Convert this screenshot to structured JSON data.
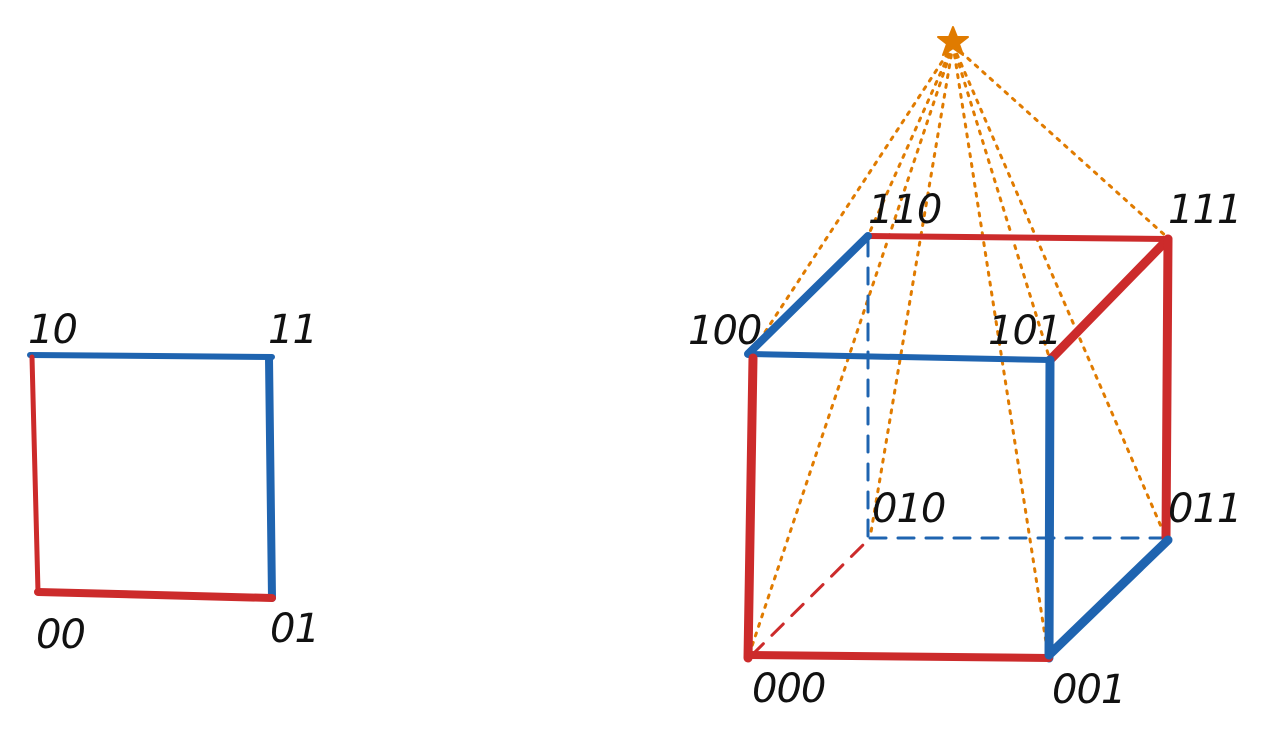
{
  "square": {
    "labels": {
      "v00": "00",
      "v01": "01",
      "v10": "10",
      "v11": "11"
    }
  },
  "cube": {
    "labels": {
      "v000": "000",
      "v001": "001",
      "v010": "010",
      "v011": "011",
      "v100": "100",
      "v101": "101",
      "v110": "110",
      "v111": "111"
    }
  },
  "colors": {
    "red": "#cc2b2b",
    "blue": "#1f64b0",
    "orange": "#e07b00"
  },
  "icons": {
    "apex": "star-icon"
  }
}
